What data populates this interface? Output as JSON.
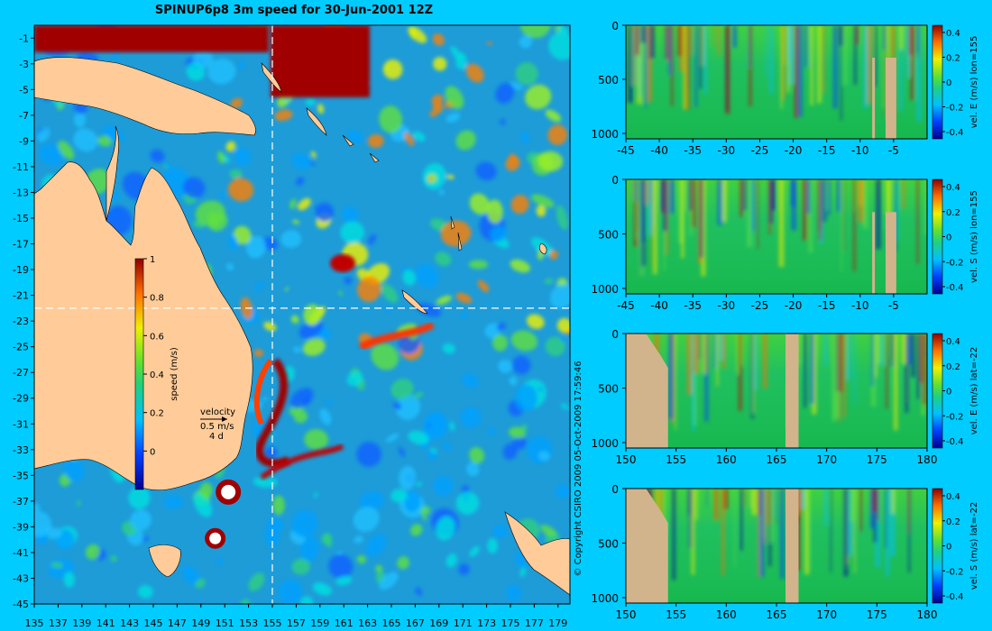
{
  "title": "SPINUP6p8 3m speed for 30-Jun-2001 12Z",
  "copyright": "© Copyright CSIRO 2009   05-Oct-2009 17:59:46",
  "colors": {
    "background": "#00ccff",
    "land": "#ffcc99",
    "section_mask": "#d2b48c",
    "guide_line": "#ffffff"
  },
  "map": {
    "x_ticks": [
      "135",
      "137",
      "139",
      "141",
      "143",
      "145",
      "147",
      "149",
      "151",
      "153",
      "155",
      "157",
      "159",
      "161",
      "163",
      "165",
      "167",
      "169",
      "171",
      "173",
      "175",
      "177",
      "179"
    ],
    "y_ticks": [
      "-1",
      "-3",
      "-5",
      "-7",
      "-9",
      "-11",
      "-13",
      "-15",
      "-17",
      "-19",
      "-21",
      "-23",
      "-25",
      "-27",
      "-29",
      "-31",
      "-33",
      "-35",
      "-37",
      "-39",
      "-41",
      "-43",
      "-45"
    ],
    "xlim": [
      135,
      180
    ],
    "ylim": [
      -45,
      0
    ],
    "section_lon": 155,
    "section_lat": -22,
    "colorbar": {
      "label": "speed (m/s)",
      "ticks": [
        "1",
        "0.8",
        "0.6",
        "0.4",
        "0.2",
        "0"
      ],
      "range": [
        -0.2,
        1.0
      ]
    },
    "velocity_key": {
      "title": "velocity",
      "scale": "0.5 m/s",
      "time": "4 d"
    },
    "eddies": [
      {
        "lon": 151.3,
        "lat": -36.3,
        "label": ""
      },
      {
        "lon": 150.2,
        "lat": -39.9,
        "label": ""
      }
    ]
  },
  "chart_data": [
    {
      "type": "heatmap",
      "title": "vel. E (m/s) lon=155",
      "xlabel": "",
      "ylabel": "",
      "x_ticks": [
        "-45",
        "-40",
        "-35",
        "-30",
        "-25",
        "-20",
        "-15",
        "-10",
        "-5"
      ],
      "y_ticks": [
        "0",
        "500",
        "1000"
      ],
      "xlim": [
        -45,
        0
      ],
      "ylim": [
        1050,
        0
      ],
      "colorbar_ticks": [
        "0.4",
        "0.2",
        "0",
        "-0.2",
        "-0.4"
      ],
      "colorbar_label": "vel. E (m/s) lon=155"
    },
    {
      "type": "heatmap",
      "title": "vel. S (m/s) lon=155",
      "xlabel": "",
      "ylabel": "",
      "x_ticks": [
        "-45",
        "-40",
        "-35",
        "-30",
        "-25",
        "-20",
        "-15",
        "-10",
        "-5"
      ],
      "y_ticks": [
        "0",
        "500",
        "1000"
      ],
      "xlim": [
        -45,
        0
      ],
      "ylim": [
        1050,
        0
      ],
      "colorbar_ticks": [
        "0.4",
        "0.2",
        "0",
        "-0.2",
        "-0.4"
      ],
      "colorbar_label": "vel. S (m/s) lon=155"
    },
    {
      "type": "heatmap",
      "title": "vel. E (m/s) lat=-22",
      "xlabel": "",
      "ylabel": "",
      "x_ticks": [
        "150",
        "155",
        "160",
        "165",
        "170",
        "175",
        "180"
      ],
      "y_ticks": [
        "0",
        "500",
        "1000"
      ],
      "xlim": [
        150,
        180
      ],
      "ylim": [
        1050,
        0
      ],
      "colorbar_ticks": [
        "0.4",
        "0.2",
        "0",
        "-0.2",
        "-0.4"
      ],
      "colorbar_label": "vel. E (m/s) lat=-22"
    },
    {
      "type": "heatmap",
      "title": "vel. S (m/s) lat=-22",
      "xlabel": "",
      "ylabel": "",
      "x_ticks": [
        "150",
        "155",
        "160",
        "165",
        "170",
        "175",
        "180"
      ],
      "y_ticks": [
        "0",
        "500",
        "1000"
      ],
      "xlim": [
        150,
        180
      ],
      "ylim": [
        1050,
        0
      ],
      "colorbar_ticks": [
        "0.4",
        "0.2",
        "0",
        "-0.2",
        "-0.4"
      ],
      "colorbar_label": "vel. S (m/s) lat=-22"
    }
  ]
}
